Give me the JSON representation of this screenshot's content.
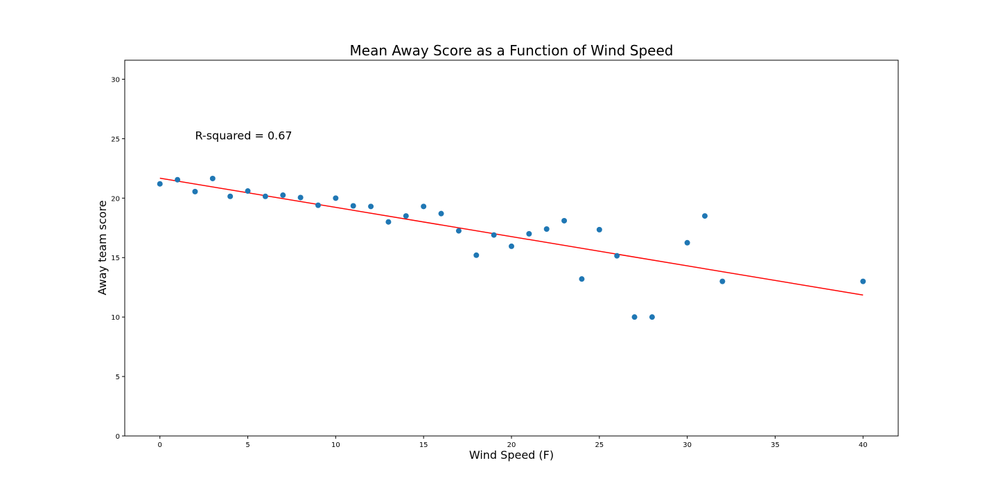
{
  "chart_data": {
    "type": "scatter",
    "title": "Mean Away Score as a Function of Wind Speed",
    "xlabel": "Wind Speed (F)",
    "ylabel": "Away team score",
    "xlim": [
      -2,
      42
    ],
    "ylim": [
      0,
      31.6
    ],
    "xticks": [
      0,
      5,
      10,
      15,
      20,
      25,
      30,
      35,
      40
    ],
    "yticks": [
      0,
      5,
      10,
      15,
      20,
      25,
      30
    ],
    "grid": false,
    "point_color": "#1f77b4",
    "line_color": "#ff0000",
    "points": [
      {
        "x": 0,
        "y": 21.2
      },
      {
        "x": 1,
        "y": 21.55
      },
      {
        "x": 2,
        "y": 20.55
      },
      {
        "x": 3,
        "y": 21.65
      },
      {
        "x": 4,
        "y": 20.15
      },
      {
        "x": 5,
        "y": 20.6
      },
      {
        "x": 6,
        "y": 20.15
      },
      {
        "x": 7,
        "y": 20.25
      },
      {
        "x": 8,
        "y": 20.05
      },
      {
        "x": 9,
        "y": 19.4
      },
      {
        "x": 10,
        "y": 20.0
      },
      {
        "x": 11,
        "y": 19.35
      },
      {
        "x": 12,
        "y": 19.3
      },
      {
        "x": 13,
        "y": 18.0
      },
      {
        "x": 14,
        "y": 18.5
      },
      {
        "x": 15,
        "y": 19.3
      },
      {
        "x": 16,
        "y": 18.7
      },
      {
        "x": 17,
        "y": 17.25
      },
      {
        "x": 18,
        "y": 15.2
      },
      {
        "x": 19,
        "y": 16.9
      },
      {
        "x": 20,
        "y": 15.95
      },
      {
        "x": 21,
        "y": 17.0
      },
      {
        "x": 22,
        "y": 17.4
      },
      {
        "x": 23,
        "y": 18.1
      },
      {
        "x": 24,
        "y": 13.2
      },
      {
        "x": 25,
        "y": 17.35
      },
      {
        "x": 26,
        "y": 15.15
      },
      {
        "x": 27,
        "y": 10.0
      },
      {
        "x": 28,
        "y": 10.0
      },
      {
        "x": 30,
        "y": 16.25
      },
      {
        "x": 31,
        "y": 18.5
      },
      {
        "x": 32,
        "y": 13.0
      },
      {
        "x": 40,
        "y": 13.0
      }
    ],
    "fit_line": {
      "x": [
        0,
        40
      ],
      "y": [
        21.68,
        11.85
      ]
    },
    "annotation": {
      "text": "R-squared = 0.67",
      "x": 2,
      "y": 25
    }
  }
}
